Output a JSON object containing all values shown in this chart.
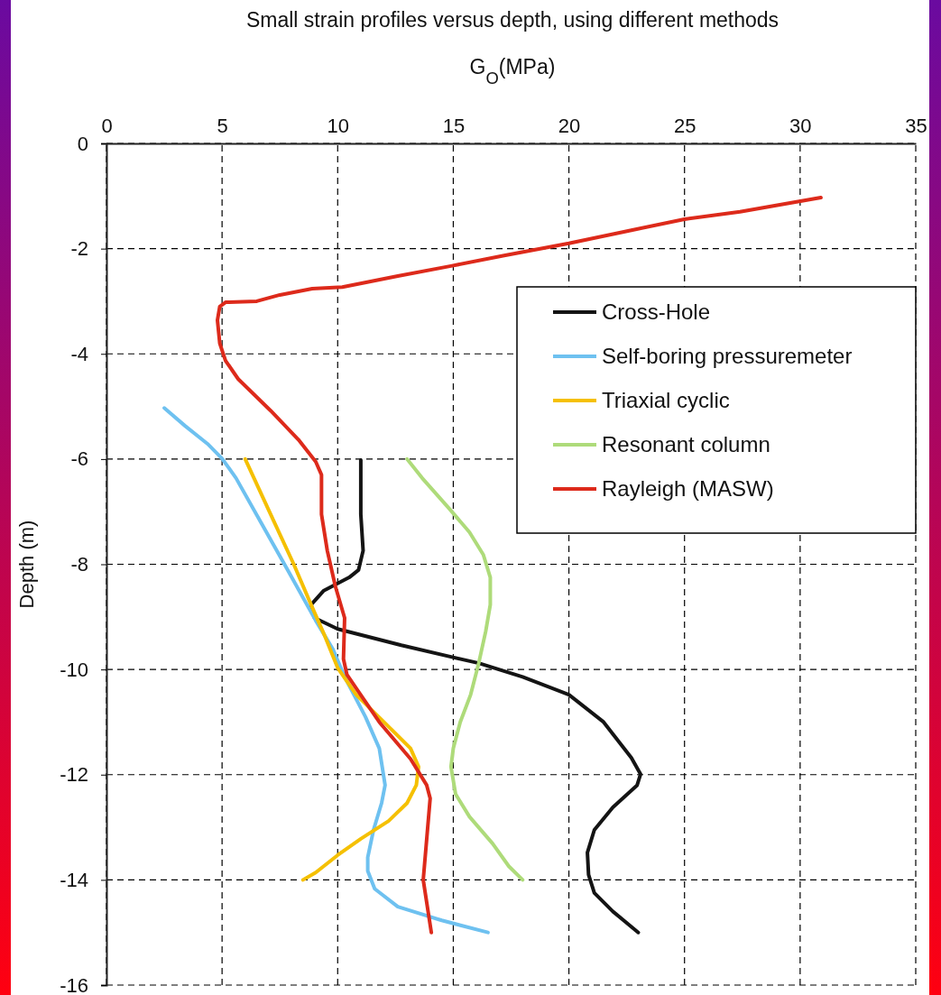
{
  "chart_data": {
    "type": "line",
    "title": "Small strain profiles versus depth, using different methods",
    "xlabel": "G$_{O}$(MPa)",
    "ylabel": "Depth (m)",
    "xlim": [
      0,
      35
    ],
    "xticks": [
      0,
      5,
      10,
      15,
      20,
      25,
      30,
      35
    ],
    "ylim": [
      -16,
      0
    ],
    "yticks": [
      -16,
      -14,
      -12,
      -10,
      -8,
      -6,
      -4,
      -2,
      0
    ],
    "grid": true,
    "legend": "top right",
    "line_style": "solid",
    "marker": "none",
    "series": [
      {
        "name": "Cross-Hole",
        "color": "#141414",
        "x": [
          11.0,
          11.0,
          11.1,
          10.9,
          10.5,
          9.4,
          8.85,
          9.0,
          10.0,
          12.75,
          14.9,
          16.1,
          18.0,
          20.0,
          21.5,
          22.7,
          23.1,
          22.95,
          21.9,
          21.1,
          20.8,
          20.85,
          21.1,
          21.9,
          23.0
        ],
        "values": [
          -6.02,
          -7.05,
          -7.74,
          -8.11,
          -8.25,
          -8.5,
          -8.77,
          -9.02,
          -9.23,
          -9.54,
          -9.76,
          -9.88,
          -10.14,
          -10.48,
          -11.0,
          -11.68,
          -11.99,
          -12.2,
          -12.62,
          -13.05,
          -13.48,
          -13.9,
          -14.25,
          -14.6,
          -15.0
        ]
      },
      {
        "name": "Self-boring pressuremeter",
        "color": "#6ec1f0",
        "x": [
          2.5,
          3.4,
          4.37,
          5.0,
          5.6,
          6.7,
          7.9,
          9.05,
          9.8,
          10.3,
          11.2,
          11.8,
          12.05,
          11.9,
          11.55,
          11.3,
          11.3,
          11.6,
          12.6,
          14.5,
          16.5
        ],
        "values": [
          -5.03,
          -5.37,
          -5.71,
          -5.99,
          -6.36,
          -7.22,
          -8.16,
          -9.07,
          -9.62,
          -10.14,
          -10.9,
          -11.5,
          -12.2,
          -12.54,
          -13.05,
          -13.57,
          -13.83,
          -14.17,
          -14.51,
          -14.77,
          -15.0
        ]
      },
      {
        "name": "Triaxial cyclic",
        "color": "#f5c000",
        "x": [
          6.0,
          7.1,
          8.1,
          8.85,
          9.45,
          10.0,
          10.8,
          12.0,
          13.15,
          13.5,
          13.4,
          13.0,
          12.2,
          11.0,
          10.0,
          9.05,
          8.5
        ],
        "values": [
          -6.0,
          -7.05,
          -8.0,
          -8.77,
          -9.37,
          -9.97,
          -10.48,
          -11.0,
          -11.5,
          -11.85,
          -12.2,
          -12.54,
          -12.88,
          -13.22,
          -13.53,
          -13.86,
          -14.0
        ]
      },
      {
        "name": "Resonant column",
        "color": "#aedb7a",
        "x": [
          13.0,
          13.65,
          14.8,
          15.7,
          16.3,
          16.6,
          16.6,
          16.4,
          16.1,
          15.75,
          15.3,
          15.0,
          14.9,
          15.1,
          15.7,
          16.7,
          17.4,
          18.0
        ],
        "values": [
          -6.0,
          -6.36,
          -6.93,
          -7.39,
          -7.82,
          -8.25,
          -8.77,
          -9.28,
          -9.88,
          -10.48,
          -11.0,
          -11.5,
          -11.85,
          -12.37,
          -12.8,
          -13.31,
          -13.74,
          -14.0
        ]
      },
      {
        "name": "Rayleigh (MASW)",
        "color": "#dd2a1b",
        "x": [
          30.9,
          27.4,
          25.0,
          22.7,
          20.0,
          17.2,
          14.9,
          12.6,
          10.2,
          8.9,
          7.5,
          6.5,
          5.15,
          4.9,
          4.8,
          4.9,
          5.15,
          5.7,
          7.1,
          8.3,
          9.05,
          9.3,
          9.3,
          9.55,
          9.9,
          10.3,
          10.25,
          10.4,
          11.8,
          13.15,
          13.85,
          14.0,
          13.7,
          14.05
        ],
        "values": [
          -1.03,
          -1.3,
          -1.44,
          -1.65,
          -1.9,
          -2.13,
          -2.33,
          -2.52,
          -2.73,
          -2.76,
          -2.88,
          -3.0,
          -3.02,
          -3.1,
          -3.36,
          -3.8,
          -4.13,
          -4.48,
          -5.08,
          -5.63,
          -6.05,
          -6.3,
          -7.05,
          -7.74,
          -8.42,
          -9.02,
          -9.8,
          -10.1,
          -11.0,
          -11.7,
          -12.2,
          -12.45,
          -14.0,
          -15.0
        ]
      }
    ]
  }
}
